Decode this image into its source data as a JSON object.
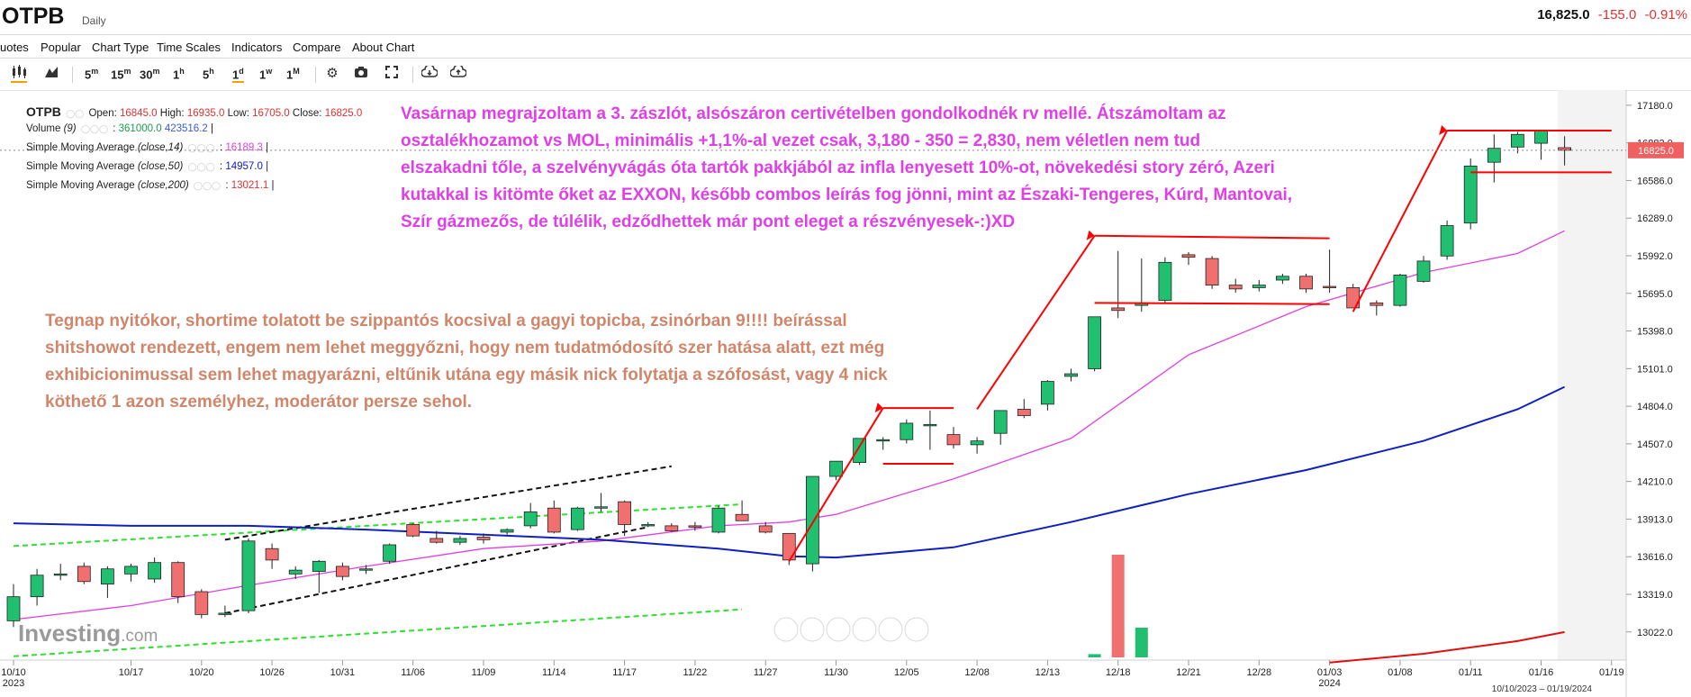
{
  "header": {
    "symbol": "OTPB",
    "period": "Daily",
    "last_price": "16,825.0",
    "change": "-155.0",
    "change_pct": "-0.91%"
  },
  "menu": [
    "uotes",
    "Popular",
    "Chart Type",
    "Time Scales",
    "Indicators",
    "Compare",
    "About Chart"
  ],
  "toolbar": {
    "timescales": [
      {
        "num": "5",
        "unit": "m"
      },
      {
        "num": "15",
        "unit": "m"
      },
      {
        "num": "30",
        "unit": "m"
      },
      {
        "num": "1",
        "unit": "h"
      },
      {
        "num": "5",
        "unit": "h"
      },
      {
        "num": "1",
        "unit": "d"
      },
      {
        "num": "1",
        "unit": "w"
      },
      {
        "num": "1",
        "unit": "M"
      }
    ],
    "active_timescale": "1d"
  },
  "legend": {
    "symbol": "OTPB",
    "open_label": "Open:",
    "open": "16845.0",
    "high_label": "High:",
    "high": "16935.0",
    "low_label": "Low:",
    "low": "16705.0",
    "close_label": "Close:",
    "close": "16825.0",
    "volume_label": "Volume",
    "volume_param": "(9)",
    "volume_v1": "361000.0",
    "volume_v2": "423516.2",
    "sma14_label": "Simple Moving Average",
    "sma14_param": "(close,14)",
    "sma14_value": "16189.3",
    "sma50_label": "Simple Moving Average",
    "sma50_param": "(close,50)",
    "sma50_value": "14957.0",
    "sma200_label": "Simple Moving Average",
    "sma200_param": "(close,200)",
    "sma200_value": "13021.1"
  },
  "annotations": {
    "top": [
      "Vasárnap megrajzoltam a 3. zászlót, alsószáron certivételben gondolkodnék rv mellé. Átszámoltam az",
      "osztalékhozamot vs MOL, minimális +1,1%-al vezet csak, 3,180 - 350 = 2,830, nem véletlen nem tud",
      "elszakadni tőle, a szelvényvágás óta tartók pakkjából az infla lenyesett 10%-ot, növekedési story zéró, Azeri",
      "kutakkal is kitömte őket az EXXON, később combos leírás fog jönni, mint az Északi-Tengeres, Kúrd, Mantovai,",
      "Szír gázmezős, de túlélik, edződhettek már pont eleget a részvényesek-:)XD"
    ],
    "left": [
      "Tegnap nyitókor, shortime tolatott be szippantós kocsival a gagyi topicba, zsinórban 9!!!! beírással",
      "shitshowot rendezett, engem nem lehet meggyőzni, hogy nem tudatmódosító szer hatása alatt, ezt még",
      "exhibicionimussal sem lehet magyarázni, eltűnik utána egy másik nick folytatja a szófosást, vagy 4 nick",
      "köthető 1 azon személyhez, moderátor persze sehol."
    ]
  },
  "watermark": {
    "brand": "Investing",
    "suffix": ".com"
  },
  "date_range": "10/10/2023 – 01/19/2024",
  "colors": {
    "up": "#20c070",
    "down": "#f07070",
    "sma14": "#e040e0",
    "sma50": "#1020c0",
    "sma200": "#e01010",
    "annotation_top": "#e03fe8",
    "annotation_left": "#d0866a",
    "trend_lines": "#ff0000",
    "channel": "#111111",
    "green_dashed": "#30e030"
  },
  "chart_data": {
    "type": "candlestick",
    "title": "OTPB",
    "period": "Daily",
    "ylim": [
      12800,
      17300
    ],
    "y_ticks": [
      13022.0,
      13319.0,
      13616.0,
      13913.0,
      14210.0,
      14507.0,
      14804.0,
      15101.0,
      15398.0,
      15695.0,
      15992.0,
      16289.0,
      16586.0,
      16883.0,
      17180.0
    ],
    "x_tick_labels": [
      {
        "label": "10/10",
        "sub": "2023",
        "index": 0
      },
      {
        "label": "10/17",
        "index": 5
      },
      {
        "label": "10/20",
        "index": 8
      },
      {
        "label": "10/26",
        "index": 11
      },
      {
        "label": "10/31",
        "index": 14
      },
      {
        "label": "11/06",
        "index": 17
      },
      {
        "label": "11/09",
        "index": 20
      },
      {
        "label": "11/14",
        "index": 23
      },
      {
        "label": "11/17",
        "index": 26
      },
      {
        "label": "11/22",
        "index": 29
      },
      {
        "label": "11/27",
        "index": 32
      },
      {
        "label": "11/30",
        "index": 35
      },
      {
        "label": "12/05",
        "index": 38
      },
      {
        "label": "12/08",
        "index": 41
      },
      {
        "label": "12/13",
        "index": 44
      },
      {
        "label": "12/18",
        "index": 47
      },
      {
        "label": "12/21",
        "index": 50
      },
      {
        "label": "12/28",
        "index": 53
      },
      {
        "label": "01/03",
        "sub": "2024",
        "index": 56
      },
      {
        "label": "01/08",
        "index": 59
      },
      {
        "label": "01/11",
        "index": 62
      },
      {
        "label": "01/16",
        "index": 65
      },
      {
        "label": "01/19",
        "index": 68
      }
    ],
    "last_price_label": "16825.0",
    "candles": [
      [
        13110,
        13400,
        13060,
        13300
      ],
      [
        13300,
        13520,
        13230,
        13470
      ],
      [
        13470,
        13560,
        13430,
        13480
      ],
      [
        13540,
        13570,
        13400,
        13420
      ],
      [
        13400,
        13540,
        13290,
        13520
      ],
      [
        13480,
        13560,
        13420,
        13540
      ],
      [
        13440,
        13610,
        13410,
        13570
      ],
      [
        13570,
        13580,
        13250,
        13300
      ],
      [
        13340,
        13360,
        13130,
        13160
      ],
      [
        13170,
        13230,
        13140,
        13170
      ],
      [
        13190,
        13760,
        13170,
        13740
      ],
      [
        13680,
        13720,
        13520,
        13590
      ],
      [
        13480,
        13540,
        13440,
        13510
      ],
      [
        13500,
        13590,
        13330,
        13580
      ],
      [
        13540,
        13570,
        13430,
        13460
      ],
      [
        13520,
        13550,
        13480,
        13520
      ],
      [
        13580,
        13720,
        13560,
        13710
      ],
      [
        13870,
        13880,
        13770,
        13780
      ],
      [
        13760,
        13820,
        13720,
        13730
      ],
      [
        13730,
        13780,
        13710,
        13760
      ],
      [
        13770,
        13800,
        13720,
        13750
      ],
      [
        13810,
        13840,
        13790,
        13830
      ],
      [
        13860,
        14040,
        13840,
        13970
      ],
      [
        14000,
        14060,
        13800,
        13810
      ],
      [
        13830,
        14010,
        13820,
        14000
      ],
      [
        14000,
        14120,
        13970,
        14010
      ],
      [
        14050,
        14060,
        13780,
        13870
      ],
      [
        13860,
        13890,
        13850,
        13870
      ],
      [
        13860,
        13880,
        13810,
        13820
      ],
      [
        13860,
        13890,
        13820,
        13850
      ],
      [
        13810,
        14020,
        13800,
        14000
      ],
      [
        13950,
        14060,
        13900,
        13900
      ],
      [
        13860,
        13890,
        13800,
        13810
      ],
      [
        13800,
        13800,
        13550,
        13590
      ],
      [
        13560,
        14250,
        13500,
        14250
      ],
      [
        14250,
        14370,
        14220,
        14370
      ],
      [
        14360,
        14550,
        14340,
        14550
      ],
      [
        14530,
        14560,
        14460,
        14540
      ],
      [
        14540,
        14700,
        14510,
        14670
      ],
      [
        14660,
        14770,
        14460,
        14660
      ],
      [
        14580,
        14640,
        14470,
        14500
      ],
      [
        14500,
        14560,
        14430,
        14530
      ],
      [
        14590,
        14770,
        14500,
        14770
      ],
      [
        14780,
        14860,
        14710,
        14730
      ],
      [
        14820,
        15010,
        14770,
        15000
      ],
      [
        15040,
        15100,
        15000,
        15060
      ],
      [
        15100,
        15510,
        15080,
        15510
      ],
      [
        15580,
        16030,
        15500,
        15560
      ],
      [
        15600,
        15970,
        15550,
        15620
      ],
      [
        15640,
        15980,
        15620,
        15940
      ],
      [
        16000,
        16020,
        15920,
        15980
      ],
      [
        15970,
        15990,
        15730,
        15760
      ],
      [
        15760,
        15810,
        15700,
        15730
      ],
      [
        15740,
        15800,
        15710,
        15760
      ],
      [
        15800,
        15850,
        15770,
        15830
      ],
      [
        15830,
        15850,
        15700,
        15730
      ],
      [
        15750,
        16040,
        15700,
        15740
      ],
      [
        15740,
        15770,
        15580,
        15580
      ],
      [
        15620,
        15640,
        15520,
        15600
      ],
      [
        15600,
        15850,
        15590,
        15840
      ],
      [
        15790,
        15990,
        15780,
        15950
      ],
      [
        15990,
        16270,
        15960,
        16230
      ],
      [
        16250,
        16760,
        16200,
        16700
      ],
      [
        16730,
        16950,
        16570,
        16840
      ],
      [
        16850,
        16970,
        16800,
        16950
      ],
      [
        16880,
        16970,
        16750,
        16980
      ],
      [
        16845,
        16935,
        16705,
        16825
      ]
    ],
    "sma14": [
      [
        0,
        13120
      ],
      [
        5,
        13230
      ],
      [
        10,
        13390
      ],
      [
        15,
        13540
      ],
      [
        20,
        13680
      ],
      [
        25,
        13740
      ],
      [
        30,
        13860
      ],
      [
        33,
        13890
      ],
      [
        35,
        13950
      ],
      [
        40,
        14230
      ],
      [
        45,
        14550
      ],
      [
        50,
        15210
      ],
      [
        55,
        15590
      ],
      [
        60,
        15860
      ],
      [
        64,
        16010
      ],
      [
        66,
        16189
      ]
    ],
    "sma50": [
      [
        0,
        13880
      ],
      [
        5,
        13860
      ],
      [
        10,
        13860
      ],
      [
        15,
        13830
      ],
      [
        20,
        13790
      ],
      [
        25,
        13750
      ],
      [
        30,
        13680
      ],
      [
        33,
        13620
      ],
      [
        35,
        13610
      ],
      [
        40,
        13690
      ],
      [
        45,
        13890
      ],
      [
        50,
        14110
      ],
      [
        55,
        14300
      ],
      [
        60,
        14530
      ],
      [
        64,
        14780
      ],
      [
        66,
        14957
      ]
    ],
    "sma200": [
      [
        56,
        12780
      ],
      [
        60,
        12850
      ],
      [
        64,
        12950
      ],
      [
        66,
        13021
      ]
    ],
    "volume": [
      {
        "index": 46,
        "value": 12000
      },
      {
        "index": 47,
        "value": 380000
      },
      {
        "index": 48,
        "value": 110000
      }
    ],
    "drawings": {
      "flag_poles": [
        {
          "from": [
            33,
            13580
          ],
          "to": [
            37,
            14790
          ]
        },
        {
          "from": [
            41,
            14780
          ],
          "to": [
            46,
            16150
          ]
        },
        {
          "from": [
            57,
            15550
          ],
          "to": [
            61,
            16980
          ]
        }
      ],
      "flag_lines": [
        {
          "from": [
            37,
            14790
          ],
          "to": [
            40,
            14790
          ]
        },
        {
          "from": [
            37,
            14350
          ],
          "to": [
            40,
            14350
          ]
        },
        {
          "from": [
            46,
            16150
          ],
          "to": [
            56,
            16130
          ]
        },
        {
          "from": [
            46,
            15620
          ],
          "to": [
            56,
            15610
          ]
        },
        {
          "from": [
            61,
            16980
          ],
          "to": [
            68,
            16980
          ]
        },
        {
          "from": [
            62,
            16650
          ],
          "to": [
            68,
            16650
          ]
        }
      ],
      "channel": [
        {
          "from": [
            9,
            13170
          ],
          "to": [
            27,
            13850
          ]
        },
        {
          "from": [
            9,
            13750
          ],
          "to": [
            28,
            14330
          ]
        }
      ],
      "green_dashed": [
        {
          "from": [
            0,
            13700
          ],
          "to": [
            31,
            14030
          ]
        },
        {
          "from": [
            0,
            12830
          ],
          "to": [
            31,
            13200
          ]
        }
      ]
    }
  }
}
